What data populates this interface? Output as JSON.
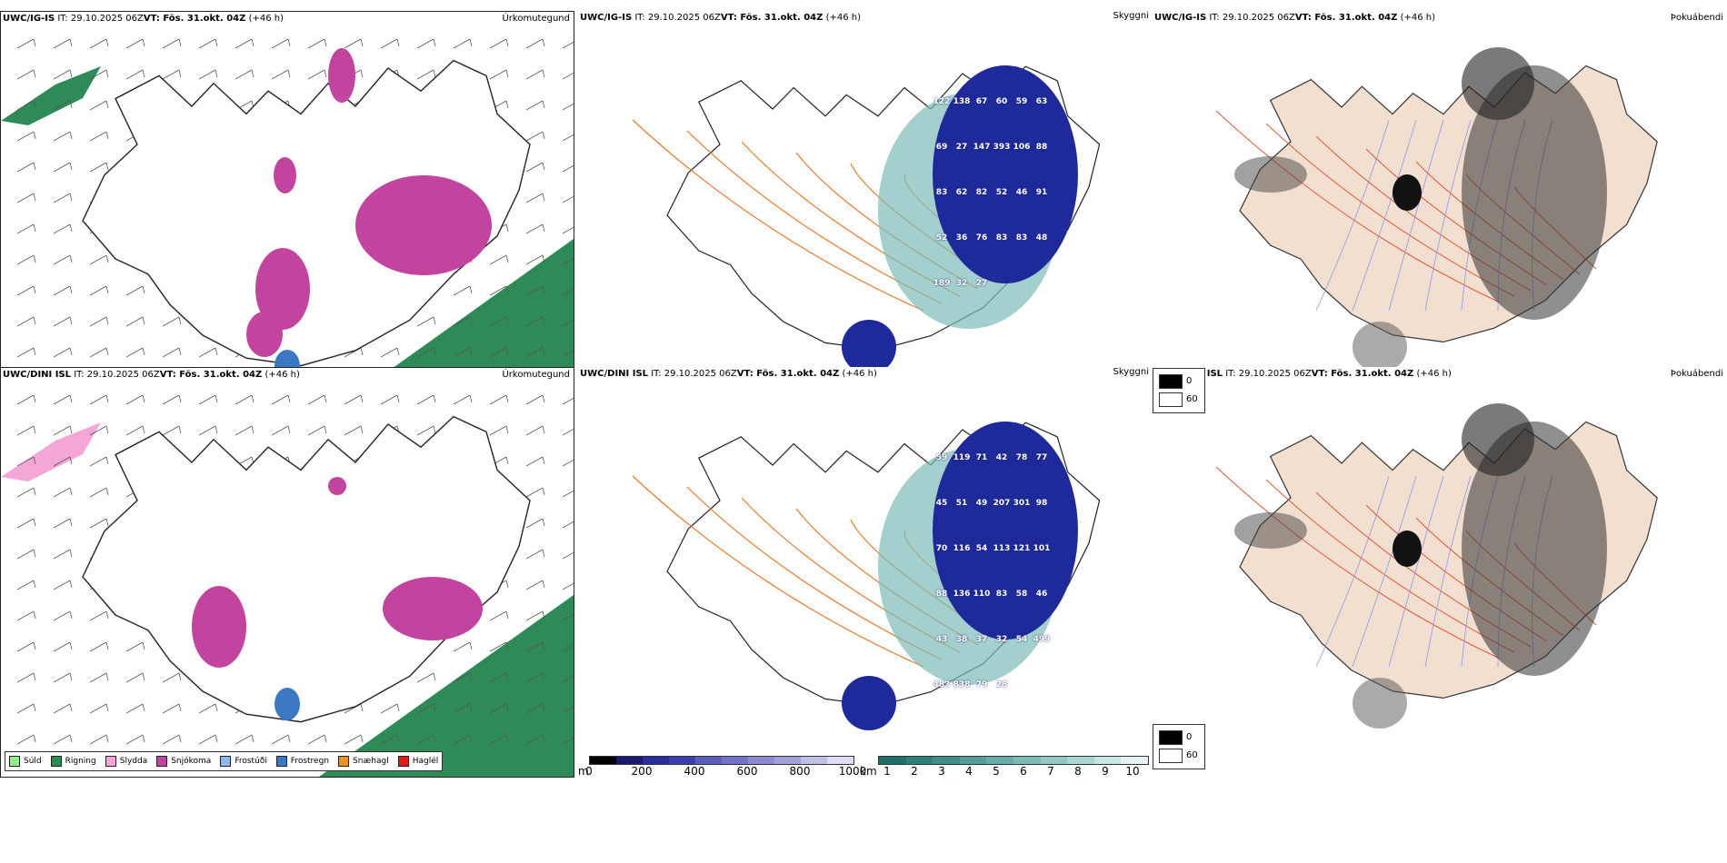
{
  "rows": [
    {
      "model_label": "UWC/IG-IS",
      "it_label": "IT:",
      "it_value": "29.10.2025 06Z",
      "vt_label": "VT:",
      "vt_value": "Fös. 31.okt. 04Z",
      "lead": "(+46 h)",
      "precip_title": "Úrkomutegund",
      "vis_title": "Skyggni",
      "fog_title": "Þokuábendi",
      "vis_numbers": [
        "122",
        "138",
        "67",
        "60",
        "59",
        "63",
        "69",
        "27",
        "147",
        "393",
        "106",
        "88",
        "83",
        "62",
        "82",
        "52",
        "46",
        "91",
        "52",
        "36",
        "76",
        "83",
        "83",
        "48",
        "189",
        "32",
        "27"
      ]
    },
    {
      "model_label": "UWC/DINI ISL",
      "it_label": "IT:",
      "it_value": "29.10.2025 06Z",
      "vt_label": "VT:",
      "vt_value": "Fös. 31.okt. 04Z",
      "lead": "(+46 h)",
      "precip_title": "Úrkomutegund",
      "vis_title": "Skyggni",
      "fog_title": "Þokuábendi",
      "vis_numbers": [
        "59",
        "119",
        "71",
        "42",
        "78",
        "77",
        "45",
        "51",
        "49",
        "207",
        "301",
        "98",
        "70",
        "116",
        "54",
        "113",
        "121",
        "101",
        "88",
        "136",
        "110",
        "83",
        "58",
        "46",
        "43",
        "38",
        "37",
        "32",
        "54",
        "499",
        "483",
        "838",
        "79",
        "28"
      ]
    }
  ],
  "precip_legend": [
    {
      "label": "Súld",
      "color": "#90ee90"
    },
    {
      "label": "Rigning",
      "color": "#2e8b57"
    },
    {
      "label": "Slydda",
      "color": "#f4a6d7"
    },
    {
      "label": "Snjókoma",
      "color": "#c2449f"
    },
    {
      "label": "Frostúði",
      "color": "#8fb8ea"
    },
    {
      "label": "Frostregn",
      "color": "#3a78c2"
    },
    {
      "label": "Snæhagl",
      "color": "#f0901e"
    },
    {
      "label": "Haglél",
      "color": "#e0191b"
    }
  ],
  "colorbar_m": {
    "unit": "m",
    "ticks": [
      "0",
      "200",
      "400",
      "600",
      "800",
      "1000"
    ],
    "colors": [
      "#000000",
      "#191970",
      "#2a2e9c",
      "#3d3fb0",
      "#5a5cbf",
      "#7172c8",
      "#8a8bd3",
      "#a2a3dd",
      "#bfc0e8",
      "#dcdcf4"
    ]
  },
  "colorbar_km": {
    "unit": "km",
    "ticks": [
      "1",
      "2",
      "3",
      "4",
      "5",
      "6",
      "7",
      "8",
      "9",
      "10"
    ],
    "colors": [
      "#1e6e6a",
      "#2f7f7b",
      "#3f8e8a",
      "#539d99",
      "#67aca8",
      "#7cbab6",
      "#93c8c5",
      "#abd6d3",
      "#c6e5e3",
      "#e4f3f2"
    ]
  },
  "fog_legend": {
    "top": "0",
    "bottom": "60"
  },
  "colors": {
    "land_vis": "#ffffff",
    "land_fog": "#f2dfcf",
    "roads": "#e87a2a",
    "rivers": "#8899ee"
  }
}
